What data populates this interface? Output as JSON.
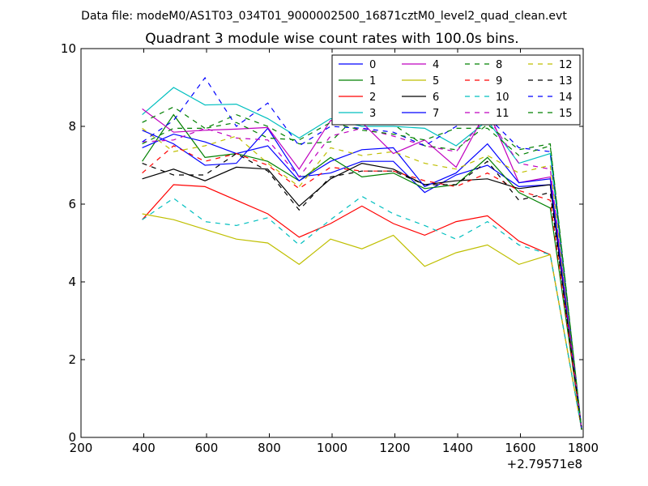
{
  "header": {
    "suptitle": "Data file: modeM0/AS1T03_034T01_9000002500_16871cztM0_level2_quad_clean.evt"
  },
  "chart_data": {
    "type": "line",
    "title": "Quadrant 3 module wise count rates with 100.0s bins.",
    "xlabel": "",
    "ylabel": "",
    "x_offset_label": "+2.79571e8",
    "xlim": [
      200,
      1800
    ],
    "ylim": [
      0,
      10
    ],
    "xticks": [
      200,
      400,
      600,
      800,
      1000,
      1200,
      1400,
      1600,
      1800
    ],
    "yticks": [
      0,
      2,
      4,
      6,
      8,
      10
    ],
    "grid": false,
    "legend_placement": "top-right",
    "legend_columns": 4,
    "x": [
      395,
      495,
      595,
      695,
      795,
      895,
      995,
      1095,
      1195,
      1295,
      1395,
      1495,
      1595,
      1695,
      1795
    ],
    "series": [
      {
        "name": "0",
        "color": "#0000ff",
        "style": "solid",
        "values": [
          7.9,
          7.55,
          7.0,
          7.05,
          7.95,
          6.7,
          6.8,
          7.1,
          7.1,
          6.3,
          6.75,
          7.0,
          6.45,
          6.5,
          0.2
        ]
      },
      {
        "name": "1",
        "color": "#008000",
        "style": "solid",
        "values": [
          7.1,
          8.3,
          7.2,
          7.3,
          7.1,
          6.6,
          7.2,
          6.7,
          6.8,
          6.4,
          6.5,
          7.2,
          6.3,
          5.9,
          0.2
        ]
      },
      {
        "name": "2",
        "color": "#ff0000",
        "style": "solid",
        "values": [
          5.6,
          6.5,
          6.45,
          6.1,
          5.75,
          5.15,
          5.5,
          5.95,
          5.5,
          5.2,
          5.55,
          5.7,
          5.05,
          4.7,
          0.2
        ]
      },
      {
        "name": "3",
        "color": "#00bfbf",
        "style": "solid",
        "values": [
          8.3,
          9.0,
          8.55,
          8.57,
          8.2,
          7.7,
          8.2,
          8.0,
          8.0,
          7.95,
          7.5,
          8.15,
          7.05,
          7.3,
          0.2
        ]
      },
      {
        "name": "4",
        "color": "#bf00bf",
        "style": "solid",
        "values": [
          8.45,
          7.85,
          7.9,
          7.93,
          7.97,
          6.9,
          8.15,
          8.1,
          7.3,
          7.65,
          6.95,
          8.45,
          6.55,
          6.7,
          0.2
        ]
      },
      {
        "name": "5",
        "color": "#bfbf00",
        "style": "solid",
        "values": [
          5.75,
          5.6,
          5.35,
          5.1,
          5.0,
          4.45,
          5.1,
          4.85,
          5.2,
          4.4,
          4.75,
          4.95,
          4.45,
          4.7,
          0.2
        ]
      },
      {
        "name": "6",
        "color": "#000000",
        "style": "solid",
        "values": [
          6.65,
          6.9,
          6.6,
          6.95,
          6.9,
          5.95,
          6.65,
          7.05,
          6.9,
          6.5,
          6.6,
          6.65,
          6.4,
          6.5,
          0.2
        ]
      },
      {
        "name": "7",
        "color": "#0000ff",
        "style": "solid",
        "values": [
          7.45,
          7.8,
          7.6,
          7.3,
          7.5,
          6.6,
          7.1,
          7.4,
          7.45,
          6.45,
          6.8,
          7.55,
          6.55,
          6.65,
          0.2
        ]
      },
      {
        "name": "8",
        "color": "#008000",
        "style": "dashed",
        "values": [
          8.1,
          8.5,
          7.95,
          8.3,
          8.0,
          7.55,
          7.6,
          8.4,
          8.05,
          7.5,
          7.4,
          8.05,
          7.4,
          7.55,
          0.2
        ]
      },
      {
        "name": "9",
        "color": "#ff0000",
        "style": "dashed",
        "values": [
          6.8,
          7.5,
          7.1,
          7.3,
          7.0,
          6.4,
          6.95,
          6.85,
          6.85,
          6.6,
          6.45,
          6.8,
          6.35,
          6.1,
          0.2
        ]
      },
      {
        "name": "10",
        "color": "#00bfbf",
        "style": "dashed",
        "values": [
          5.6,
          6.15,
          5.55,
          5.45,
          5.65,
          4.95,
          5.6,
          6.2,
          5.75,
          5.45,
          5.1,
          5.55,
          4.95,
          4.7,
          0.2
        ]
      },
      {
        "name": "11",
        "color": "#bf00bf",
        "style": "dashed",
        "values": [
          7.6,
          7.65,
          7.95,
          7.7,
          7.65,
          6.7,
          7.75,
          7.95,
          7.75,
          7.5,
          7.35,
          8.25,
          7.05,
          6.9,
          0.2
        ]
      },
      {
        "name": "12",
        "color": "#bfbf00",
        "style": "dashed",
        "values": [
          7.95,
          7.35,
          7.5,
          7.75,
          7.05,
          6.45,
          7.45,
          7.25,
          7.35,
          7.05,
          6.9,
          7.25,
          6.8,
          7.0,
          0.2
        ]
      },
      {
        "name": "13",
        "color": "#000000",
        "style": "dashed",
        "values": [
          7.05,
          6.75,
          6.75,
          7.3,
          6.85,
          5.85,
          6.7,
          6.85,
          6.85,
          6.5,
          6.5,
          7.1,
          6.1,
          6.3,
          0.2
        ]
      },
      {
        "name": "14",
        "color": "#0000ff",
        "style": "dashed",
        "values": [
          7.6,
          8.15,
          9.25,
          8.0,
          8.6,
          7.5,
          8.0,
          7.95,
          7.85,
          7.5,
          8.0,
          8.25,
          7.45,
          7.35,
          0.2
        ]
      },
      {
        "name": "15",
        "color": "#008000",
        "style": "dashed",
        "values": [
          7.55,
          7.95,
          7.95,
          8.1,
          7.7,
          7.65,
          8.1,
          7.9,
          7.8,
          7.65,
          7.95,
          7.95,
          7.25,
          7.5,
          0.2
        ]
      }
    ]
  }
}
